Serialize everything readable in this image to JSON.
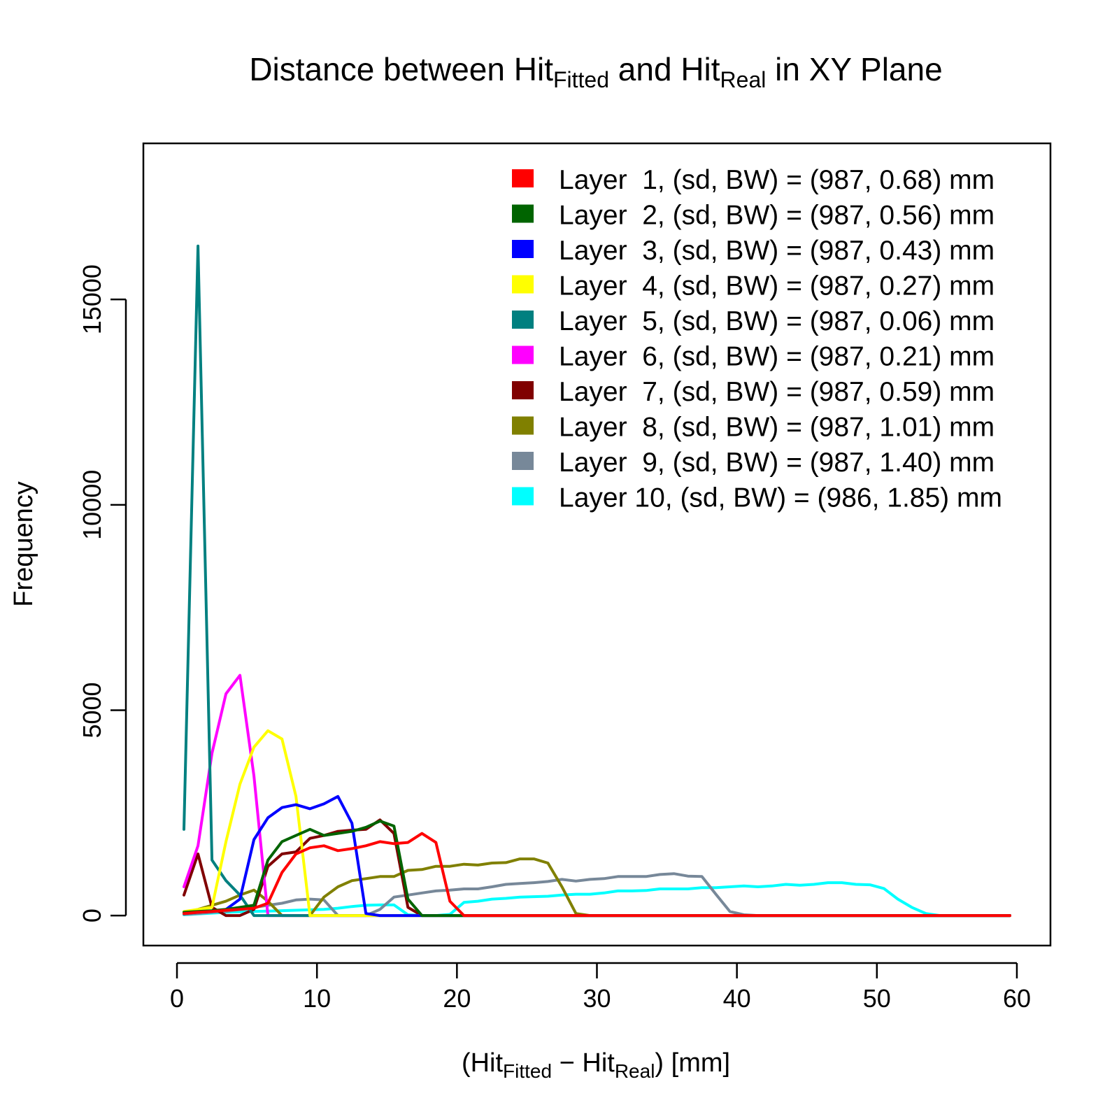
{
  "chart_data": {
    "type": "line",
    "title": {
      "prefix": "Distance between Hit",
      "sub1": "Fitted",
      "middle": " and Hit",
      "sub2": "Real",
      "suffix": " in XY Plane"
    },
    "xlabel": {
      "prefix": "(Hit",
      "sub1": "Fitted",
      "middle": " − Hit",
      "sub2": "Real",
      "suffix": ")  [mm]"
    },
    "ylabel": "Frequency",
    "xlim": [
      -2.4,
      62.4
    ],
    "ylim": [
      -730,
      18800
    ],
    "xticks": [
      0,
      10,
      20,
      30,
      40,
      50,
      60
    ],
    "yticks": [
      0,
      5000,
      10000,
      15000
    ],
    "grid": false,
    "legend_position": "top-right",
    "series": [
      {
        "name": "Layer  1, (sd, BW) = (987, 0.68) mm",
        "color": "#FF0000",
        "x": [
          0.5,
          1.5,
          2.5,
          3.5,
          4.5,
          5.5,
          6.5,
          7.5,
          8.5,
          9.5,
          10.5,
          11.5,
          12.5,
          13.5,
          14.5,
          15.5,
          16.5,
          17.5,
          18.5,
          19.5,
          20.5,
          59.5
        ],
        "y": [
          50,
          80,
          100,
          130,
          150,
          180,
          300,
          1050,
          1500,
          1650,
          1700,
          1580,
          1630,
          1700,
          1800,
          1750,
          1780,
          2000,
          1780,
          350,
          0,
          0
        ]
      },
      {
        "name": "Layer  2, (sd, BW) = (987, 0.56) mm",
        "color": "#006400",
        "x": [
          0.5,
          1.5,
          2.5,
          3.5,
          4.5,
          5.5,
          6.5,
          7.5,
          8.5,
          9.5,
          10.5,
          11.5,
          12.5,
          13.5,
          14.5,
          15.5,
          16.5,
          17.5,
          59.5
        ],
        "y": [
          80,
          100,
          120,
          150,
          200,
          250,
          1350,
          1800,
          1950,
          2100,
          1950,
          2000,
          2050,
          2150,
          2300,
          2180,
          400,
          0,
          0
        ]
      },
      {
        "name": "Layer  3, (sd, BW) = (987, 0.43) mm",
        "color": "#0000FF",
        "x": [
          0.5,
          1.5,
          2.5,
          3.5,
          4.5,
          5.5,
          6.5,
          7.5,
          8.5,
          9.5,
          10.5,
          11.5,
          12.5,
          13.5,
          14.5,
          59.5
        ],
        "y": [
          50,
          80,
          100,
          150,
          400,
          1850,
          2380,
          2630,
          2700,
          2600,
          2720,
          2900,
          2250,
          50,
          0,
          0
        ]
      },
      {
        "name": "Layer  4, (sd, BW) = (987, 0.27) mm",
        "color": "#FFFF00",
        "x": [
          0.5,
          1.5,
          2.5,
          3.5,
          4.5,
          5.5,
          6.5,
          7.5,
          8.5,
          9.5,
          10.5,
          59.5
        ],
        "y": [
          100,
          150,
          200,
          1800,
          3200,
          4100,
          4500,
          4300,
          2900,
          0,
          0,
          0
        ]
      },
      {
        "name": "Layer  5, (sd, BW) = (987, 0.06) mm",
        "color": "#008080",
        "x": [
          0.5,
          1.5,
          2.5,
          3.5,
          4.5,
          5.5,
          6.5,
          59.5
        ],
        "y": [
          2100,
          16300,
          1350,
          850,
          500,
          0,
          0,
          0
        ]
      },
      {
        "name": "Layer  6, (sd, BW) = (987, 0.21) mm",
        "color": "#FF00FF",
        "x": [
          0.5,
          1.5,
          2.5,
          3.5,
          4.5,
          5.5,
          6.5,
          7.5,
          59.5
        ],
        "y": [
          700,
          1700,
          3950,
          5400,
          5850,
          3400,
          0,
          0,
          0
        ]
      },
      {
        "name": "Layer  7, (sd, BW) = (987, 0.59) mm",
        "color": "#800000",
        "x": [
          0.5,
          1.5,
          2.5,
          3.5,
          4.5,
          5.5,
          6.5,
          7.5,
          8.5,
          9.5,
          10.5,
          11.5,
          12.5,
          13.5,
          14.5,
          15.5,
          16.5,
          17.5,
          59.5
        ],
        "y": [
          500,
          1500,
          200,
          0,
          0,
          150,
          1200,
          1500,
          1550,
          1880,
          1950,
          2050,
          2080,
          2100,
          2330,
          2000,
          200,
          0,
          0
        ]
      },
      {
        "name": "Layer  8, (sd, BW) = (987, 1.01) mm",
        "color": "#808000",
        "x": [
          0.5,
          1.5,
          2.5,
          3.5,
          4.5,
          5.5,
          6.5,
          7.5,
          8.5,
          9.5,
          10.5,
          11.5,
          12.5,
          13.5,
          14.5,
          15.5,
          16.5,
          17.5,
          18.5,
          19.5,
          20.5,
          21.5,
          22.5,
          23.5,
          24.5,
          25.5,
          26.5,
          27.5,
          28.5,
          29.5,
          59.5
        ],
        "y": [
          80,
          150,
          250,
          350,
          500,
          620,
          350,
          0,
          0,
          0,
          450,
          700,
          850,
          900,
          950,
          950,
          1100,
          1120,
          1200,
          1200,
          1250,
          1230,
          1280,
          1290,
          1380,
          1380,
          1280,
          700,
          50,
          0,
          0
        ]
      },
      {
        "name": "Layer  9, (sd, BW) = (987, 1.40) mm",
        "color": "#778899",
        "x": [
          0.5,
          1.5,
          2.5,
          3.5,
          4.5,
          5.5,
          6.5,
          7.5,
          8.5,
          9.5,
          10.5,
          11.5,
          12.5,
          13.5,
          14.5,
          15.5,
          16.5,
          17.5,
          18.5,
          19.5,
          20.5,
          21.5,
          22.5,
          23.5,
          24.5,
          25.5,
          26.5,
          27.5,
          28.5,
          29.5,
          30.5,
          31.5,
          32.5,
          33.5,
          34.5,
          35.5,
          36.5,
          37.5,
          38.5,
          39.5,
          40.5,
          41.5,
          59.5
        ],
        "y": [
          30,
          50,
          80,
          100,
          150,
          200,
          250,
          300,
          380,
          400,
          380,
          0,
          0,
          0,
          150,
          450,
          500,
          550,
          600,
          620,
          650,
          650,
          700,
          760,
          780,
          800,
          830,
          880,
          840,
          880,
          900,
          950,
          950,
          950,
          1000,
          1020,
          960,
          950,
          520,
          100,
          20,
          0,
          0
        ]
      },
      {
        "name": "Layer 10, (sd, BW) = (986, 1.85) mm",
        "color": "#00FFFF",
        "x": [
          0.5,
          1.5,
          2.5,
          3.5,
          4.5,
          5.5,
          6.5,
          7.5,
          8.5,
          9.5,
          10.5,
          11.5,
          12.5,
          13.5,
          14.5,
          15.5,
          16.5,
          17.5,
          18.5,
          19.5,
          20.5,
          21.5,
          22.5,
          23.5,
          24.5,
          25.5,
          26.5,
          27.5,
          28.5,
          29.5,
          30.5,
          31.5,
          32.5,
          33.5,
          34.5,
          35.5,
          36.5,
          37.5,
          38.5,
          39.5,
          40.5,
          41.5,
          42.5,
          43.5,
          44.5,
          45.5,
          46.5,
          47.5,
          48.5,
          49.5,
          50.5,
          51.5,
          52.5,
          53.5,
          54.5,
          59.5
        ],
        "y": [
          20,
          40,
          60,
          80,
          90,
          100,
          110,
          120,
          130,
          140,
          150,
          180,
          220,
          250,
          260,
          260,
          20,
          0,
          0,
          30,
          320,
          350,
          400,
          420,
          450,
          460,
          470,
          500,
          520,
          520,
          550,
          600,
          600,
          610,
          650,
          650,
          650,
          680,
          680,
          700,
          720,
          700,
          720,
          760,
          740,
          760,
          800,
          800,
          760,
          750,
          660,
          400,
          200,
          50,
          0,
          0
        ]
      }
    ]
  }
}
